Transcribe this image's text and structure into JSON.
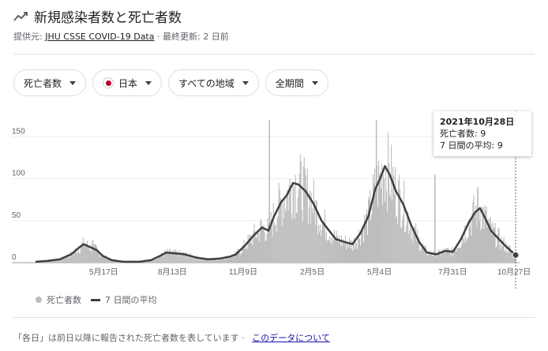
{
  "header": {
    "title": "新規感染者数と死亡者数"
  },
  "source": {
    "prefix": "提供元:",
    "link": "JHU CSSE COVID-19 Data",
    "sep": " · ",
    "updated": "最終更新: 2 日前"
  },
  "filters": [
    {
      "label": "死亡者数"
    },
    {
      "label": "日本"
    },
    {
      "label": "すべての地域"
    },
    {
      "label": "全期間"
    }
  ],
  "tooltip": {
    "date": "2021年10月28日",
    "deaths": "死亡者数: 9",
    "avg": "7 日間の平均: 9"
  },
  "legend": {
    "bars": "死亡者数",
    "line": "7 日間の平均"
  },
  "footer": {
    "note": "「各日」は前日以降に報告された死亡者数を表しています ·",
    "link": "このデータについて"
  },
  "colors": {
    "bars": "#bdbdbd",
    "line": "#3c4043",
    "flag": "#bc002d"
  },
  "chart_data": {
    "type": "bar",
    "y_ticks": [
      "0",
      "50",
      "100",
      "150"
    ],
    "ylim": [
      0,
      170
    ],
    "x_tick_labels": [
      "5月17日",
      "8月13日",
      "11月9日",
      "2月5日",
      "5月4日",
      "7月31日",
      "10月27日"
    ],
    "avg_series": [
      [
        "2020-03-01",
        1
      ],
      [
        "2020-03-15",
        2
      ],
      [
        "2020-04-01",
        4
      ],
      [
        "2020-04-15",
        10
      ],
      [
        "2020-04-25",
        18
      ],
      [
        "2020-05-01",
        22
      ],
      [
        "2020-05-10",
        18
      ],
      [
        "2020-05-17",
        15
      ],
      [
        "2020-05-25",
        8
      ],
      [
        "2020-06-05",
        3
      ],
      [
        "2020-06-20",
        1
      ],
      [
        "2020-07-10",
        1
      ],
      [
        "2020-07-25",
        3
      ],
      [
        "2020-08-05",
        8
      ],
      [
        "2020-08-13",
        12
      ],
      [
        "2020-08-25",
        11
      ],
      [
        "2020-09-05",
        10
      ],
      [
        "2020-09-20",
        6
      ],
      [
        "2020-10-05",
        4
      ],
      [
        "2020-10-20",
        5
      ],
      [
        "2020-11-01",
        7
      ],
      [
        "2020-11-09",
        10
      ],
      [
        "2020-11-20",
        20
      ],
      [
        "2020-12-01",
        32
      ],
      [
        "2020-12-12",
        42
      ],
      [
        "2020-12-20",
        38
      ],
      [
        "2020-12-27",
        55
      ],
      [
        "2021-01-05",
        72
      ],
      [
        "2021-01-12",
        80
      ],
      [
        "2021-01-20",
        95
      ],
      [
        "2021-01-27",
        93
      ],
      [
        "2021-02-05",
        85
      ],
      [
        "2021-02-15",
        70
      ],
      [
        "2021-02-25",
        50
      ],
      [
        "2021-03-05",
        40
      ],
      [
        "2021-03-15",
        28
      ],
      [
        "2021-03-25",
        25
      ],
      [
        "2021-04-05",
        22
      ],
      [
        "2021-04-15",
        35
      ],
      [
        "2021-04-25",
        55
      ],
      [
        "2021-05-04",
        88
      ],
      [
        "2021-05-10",
        100
      ],
      [
        "2021-05-16",
        115
      ],
      [
        "2021-05-22",
        105
      ],
      [
        "2021-05-30",
        85
      ],
      [
        "2021-06-08",
        70
      ],
      [
        "2021-06-18",
        45
      ],
      [
        "2021-06-28",
        25
      ],
      [
        "2021-07-08",
        12
      ],
      [
        "2021-07-20",
        10
      ],
      [
        "2021-07-31",
        14
      ],
      [
        "2021-08-10",
        13
      ],
      [
        "2021-08-20",
        28
      ],
      [
        "2021-08-30",
        48
      ],
      [
        "2021-09-07",
        60
      ],
      [
        "2021-09-13",
        65
      ],
      [
        "2021-09-20",
        52
      ],
      [
        "2021-09-27",
        38
      ],
      [
        "2021-10-05",
        30
      ],
      [
        "2021-10-15",
        20
      ],
      [
        "2021-10-22",
        14
      ],
      [
        "2021-10-28",
        9
      ]
    ],
    "spikes": [
      [
        "2020-12-21",
        170
      ],
      [
        "2021-05-05",
        170
      ],
      [
        "2021-07-18",
        105
      ],
      [
        "2020-05-12",
        27
      ],
      [
        "2021-09-10",
        90
      ]
    ]
  }
}
